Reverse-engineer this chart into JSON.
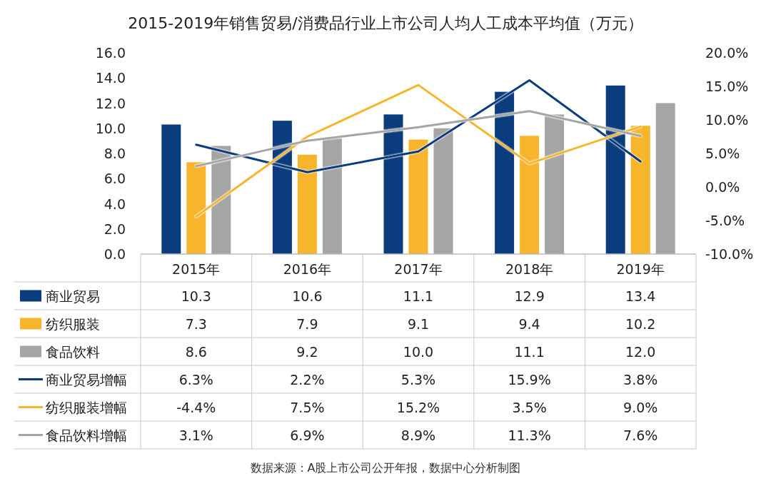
{
  "chart_data": {
    "type": "bar",
    "title": "2015-2019年销售贸易/消费品行业上市公司人均人工成本平均值（万元）",
    "categories": [
      "2015年",
      "2016年",
      "2017年",
      "2018年",
      "2019年"
    ],
    "ylim": [
      0,
      16
    ],
    "yticks": [
      {
        "value": 0,
        "label": "0.0"
      },
      {
        "value": 2,
        "label": "2.0"
      },
      {
        "value": 4,
        "label": "4.0"
      },
      {
        "value": 6,
        "label": "6.0"
      },
      {
        "value": 8,
        "label": "8.0"
      },
      {
        "value": 10,
        "label": "10.0"
      },
      {
        "value": 12,
        "label": "12.0"
      },
      {
        "value": 14,
        "label": "14.0"
      },
      {
        "value": 16,
        "label": "16.0"
      }
    ],
    "y2lim": [
      -10,
      20
    ],
    "y2ticks": [
      {
        "value": -10,
        "label": "-10.0%"
      },
      {
        "value": -5,
        "label": "-5.0%"
      },
      {
        "value": 0,
        "label": "0.0%"
      },
      {
        "value": 5,
        "label": "5.0%"
      },
      {
        "value": 10,
        "label": "10.0%"
      },
      {
        "value": 15,
        "label": "15.0%"
      },
      {
        "value": 20,
        "label": "20.0%"
      }
    ],
    "grid": false,
    "legend": "bottom left",
    "series": [
      {
        "name": "商业贸易",
        "color": "#0b3c7d",
        "values": [
          10.3,
          10.6,
          11.1,
          12.9,
          13.4
        ],
        "value_labels": [
          "10.3",
          "10.6",
          "11.1",
          "12.9",
          "13.4"
        ]
      },
      {
        "name": "纺织服装",
        "color": "#f7b52c",
        "values": [
          7.3,
          7.9,
          9.1,
          9.4,
          10.2
        ],
        "value_labels": [
          "7.3",
          "7.9",
          "9.1",
          "9.4",
          "10.2"
        ]
      },
      {
        "name": "食品饮料",
        "color": "#a5a5a5",
        "values": [
          8.6,
          9.2,
          10.0,
          11.1,
          12.0
        ],
        "value_labels": [
          "8.6",
          "9.2",
          "10.0",
          "11.1",
          "12.0"
        ]
      },
      {
        "name": "商业贸易增幅",
        "type": "line",
        "axis": "y2",
        "color": "#0b3c7d",
        "values": [
          6.3,
          2.2,
          5.3,
          15.9,
          3.8
        ],
        "value_labels": [
          "6.3%",
          "2.2%",
          "5.3%",
          "15.9%",
          "3.8%"
        ]
      },
      {
        "name": "纺织服装增幅",
        "type": "line",
        "axis": "y2",
        "color": "#f7b52c",
        "values": [
          -4.4,
          7.5,
          15.2,
          3.5,
          9.0
        ],
        "value_labels": [
          "-4.4%",
          "7.5%",
          "15.2%",
          "3.5%",
          "9.0%"
        ]
      },
      {
        "name": "食品饮料增幅",
        "type": "line",
        "axis": "y2",
        "color": "#a5a5a5",
        "values": [
          3.1,
          6.9,
          8.9,
          11.3,
          7.6
        ],
        "value_labels": [
          "3.1%",
          "6.9%",
          "8.9%",
          "11.3%",
          "7.6%"
        ]
      }
    ],
    "annotations": [
      "数据来源：A股上市公司公开年报，数据中心分析制图"
    ]
  }
}
